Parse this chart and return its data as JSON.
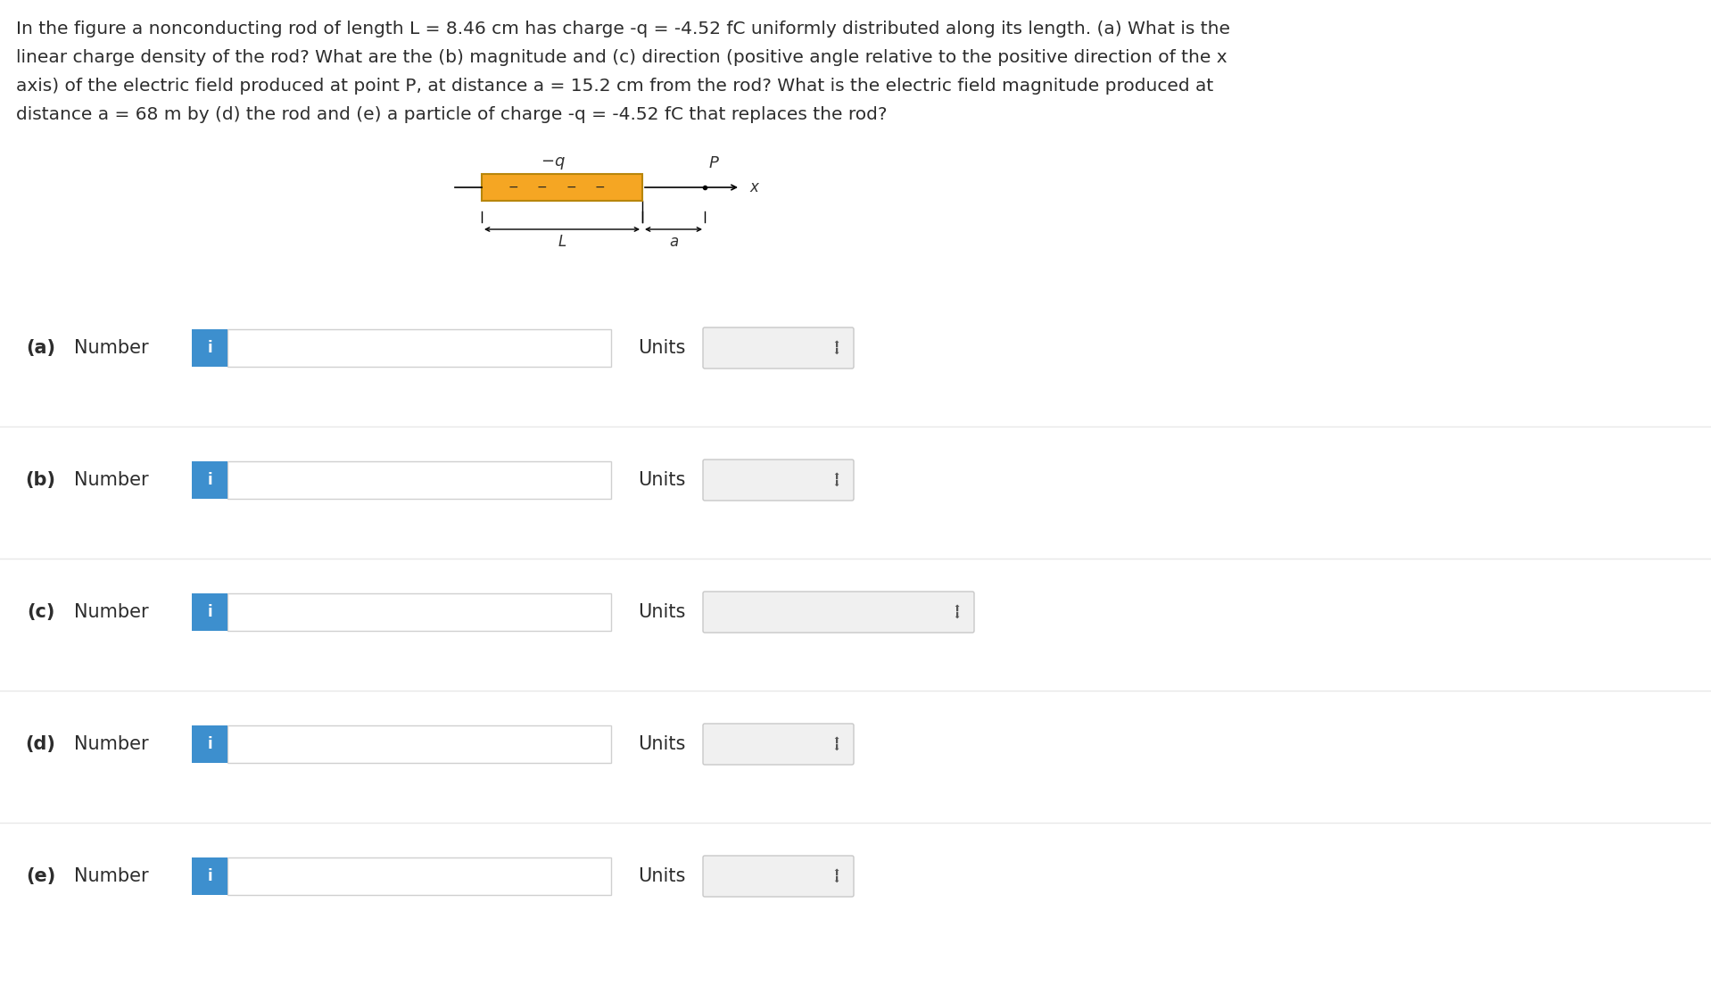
{
  "title_lines": [
    "In the figure a nonconducting rod of length L = 8.46 cm has charge -q = -4.52 fC uniformly distributed along its length. (a) What is the",
    "linear charge density of the rod? What are the (b) magnitude and (c) direction (positive angle relative to the positive direction of the x",
    "axis) of the electric field produced at point P, at distance a = 15.2 cm from the rod? What is the electric field magnitude produced at",
    "distance a = 68 m by (d) the rod and (e) a particle of charge -q = -4.52 fC that replaces the rod?"
  ],
  "parts": [
    "(a)",
    "(b)",
    "(c)",
    "(d)",
    "(e)"
  ],
  "bg_color": "#ffffff",
  "text_color": "#2d2d2d",
  "bold_parts": [
    "(a)",
    "(b)",
    "(c)",
    "(d)",
    "(e)"
  ],
  "info_btn_color": "#3d8fce",
  "info_btn_text_color": "#ffffff",
  "input_box_border": "#d0d0d0",
  "input_box_bg": "#ffffff",
  "units_box_border": "#c8c8c8",
  "units_box_bg": "#f0f0f0",
  "rod_color": "#f5a623",
  "rod_border_color": "#b8860b",
  "separator_color": "#e8e8e8",
  "title_fontsize": 14.5,
  "label_fontsize": 15,
  "btn_fontsize": 12
}
